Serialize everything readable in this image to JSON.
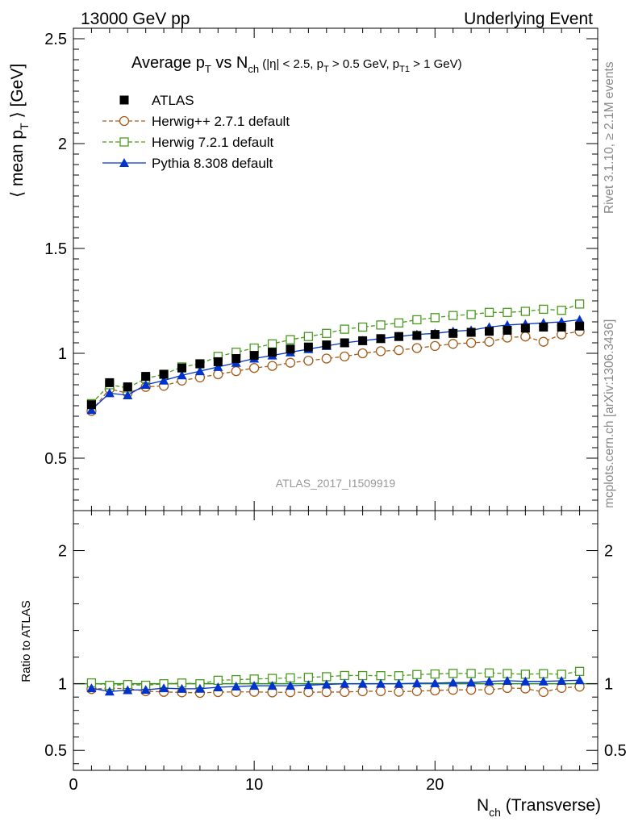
{
  "header": {
    "left": "13000 GeV pp",
    "right": "Underlying Event"
  },
  "side": {
    "rivet": "Rivet 3.1.10, ≥ 2.1M events",
    "mcplots": "mcplots.cern.ch [arXiv:1306.3436]"
  },
  "watermark": "ATLAS_2017_I1509919",
  "chart_data": {
    "type": "scatter",
    "title": {
      "t1": "Average p",
      "t1_sub": "T",
      "t2": " vs N",
      "t2_sub": "ch",
      "t3": " (|η| < 2.5, p",
      "t3_sub": "T",
      "t4": " > 0.5 GeV, p",
      "t4_sub": "T1",
      "t5": " > 1 GeV)"
    },
    "ylabel": {
      "a": "⟨ mean p",
      "a_sub": "T",
      "b": " ⟩ [GeV]"
    },
    "ratio_ylabel": "Ratio to ATLAS",
    "xlabel": {
      "a": "N",
      "a_sub": "ch",
      "b": " (Transverse)"
    },
    "xlim": [
      0,
      29
    ],
    "ylim": [
      0.25,
      2.55
    ],
    "ratio_ylim": [
      0.35,
      2.3
    ],
    "xticks": [
      0,
      10,
      20
    ],
    "xtick_labels": [
      "0",
      "10",
      "20"
    ],
    "yticks": [
      0.5,
      1,
      1.5,
      2,
      2.5
    ],
    "ytick_labels": [
      "0.5",
      "1",
      "1.5",
      "2",
      "2.5"
    ],
    "ratio_yticks": [
      0.5,
      1,
      2
    ],
    "ratio_ytick_labels": [
      "0.5",
      "1",
      "2"
    ],
    "x": [
      1,
      2,
      3,
      4,
      5,
      6,
      7,
      8,
      9,
      10,
      11,
      12,
      13,
      14,
      15,
      16,
      17,
      18,
      19,
      20,
      21,
      22,
      23,
      24,
      25,
      26,
      27,
      28
    ],
    "series": [
      {
        "name": "ATLAS",
        "style": "data",
        "color": "#000000",
        "values": [
          0.755,
          0.86,
          0.84,
          0.89,
          0.9,
          0.93,
          0.95,
          0.96,
          0.975,
          0.99,
          1.005,
          1.02,
          1.03,
          1.04,
          1.05,
          1.06,
          1.07,
          1.08,
          1.085,
          1.09,
          1.095,
          1.1,
          1.105,
          1.11,
          1.12,
          1.125,
          1.125,
          1.13
        ]
      },
      {
        "name": "Herwig++ 2.7.1 default",
        "style": "circle",
        "color": "#a35c1a",
        "values": [
          0.725,
          0.83,
          0.81,
          0.84,
          0.845,
          0.87,
          0.885,
          0.9,
          0.915,
          0.93,
          0.94,
          0.955,
          0.965,
          0.975,
          0.985,
          1.0,
          1.01,
          1.015,
          1.025,
          1.035,
          1.045,
          1.05,
          1.055,
          1.075,
          1.08,
          1.055,
          1.09,
          1.105
        ]
      },
      {
        "name": "Herwig 7.2.1 default",
        "style": "square",
        "color": "#4a9a1e",
        "values": [
          0.76,
          0.85,
          0.835,
          0.88,
          0.9,
          0.935,
          0.95,
          0.985,
          1.005,
          1.025,
          1.045,
          1.065,
          1.08,
          1.095,
          1.115,
          1.125,
          1.135,
          1.145,
          1.16,
          1.17,
          1.18,
          1.185,
          1.195,
          1.195,
          1.2,
          1.21,
          1.205,
          1.235
        ]
      },
      {
        "name": "Pythia 8.308 default",
        "style": "triangle",
        "color": "#0033cc",
        "values": [
          0.73,
          0.81,
          0.8,
          0.85,
          0.87,
          0.895,
          0.915,
          0.935,
          0.955,
          0.975,
          0.99,
          1.005,
          1.02,
          1.035,
          1.05,
          1.06,
          1.07,
          1.08,
          1.09,
          1.095,
          1.105,
          1.11,
          1.125,
          1.135,
          1.14,
          1.145,
          1.15,
          1.16
        ]
      }
    ]
  }
}
